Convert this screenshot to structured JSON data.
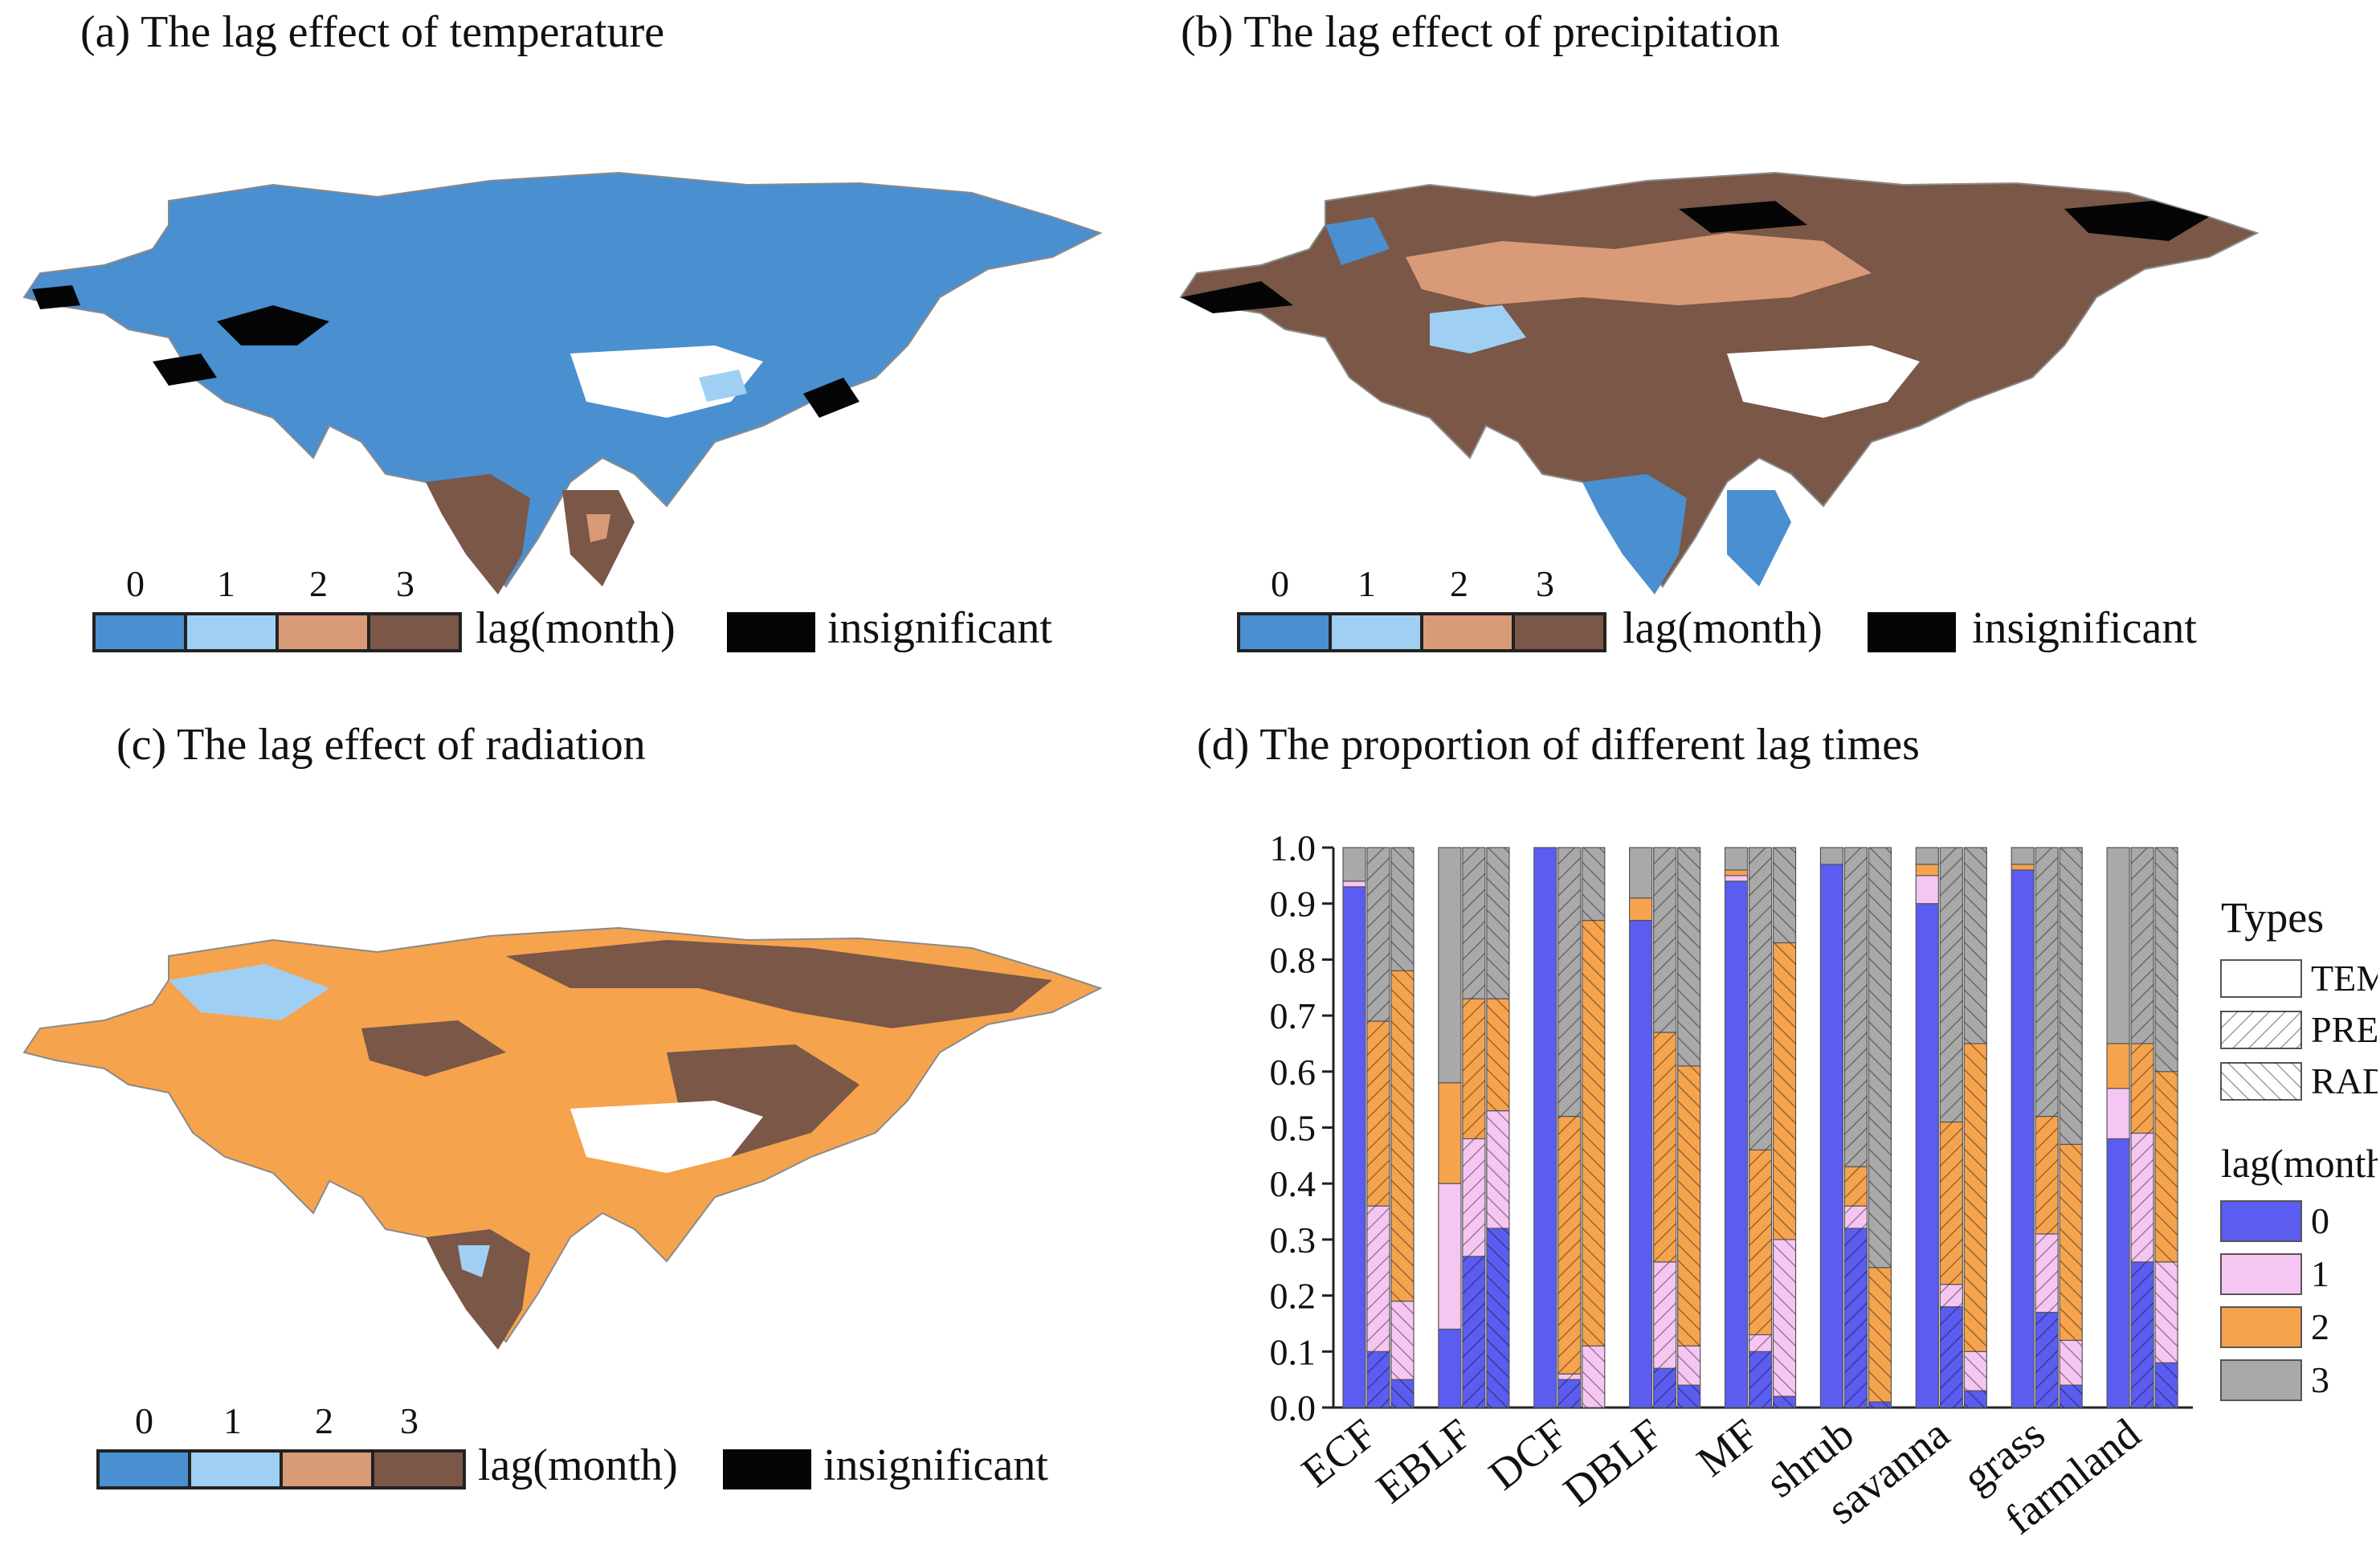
{
  "panels": {
    "a": {
      "title": "(a) The lag effect of temperature"
    },
    "b": {
      "title": "(b) The lag effect of precipitation"
    },
    "c": {
      "title": "(c) The lag effect of radiation"
    },
    "d": {
      "title": "(d) The proportion of different lag times"
    }
  },
  "map_legend": {
    "ticks": [
      "0",
      "1",
      "2",
      "3"
    ],
    "colors": [
      "#4a8fd0",
      "#9fd0f3",
      "#d89a77",
      "#7a5747"
    ],
    "label": "lag(month)",
    "insignificant_label": "insignificant",
    "insignificant_color": "#050505"
  },
  "chart_data": {
    "type": "bar",
    "stacked": true,
    "title": "(d) The proportion of different lag times",
    "categories": [
      "ECF",
      "EBLF",
      "DCF",
      "DBLF",
      "MF",
      "shrub",
      "savanna",
      "grass",
      "farmland"
    ],
    "types": [
      "TEM",
      "PRE",
      "RAD"
    ],
    "lag_classes": [
      "0",
      "1",
      "2",
      "3"
    ],
    "lag_colors": [
      "#5b5cf0",
      "#f6c6f2",
      "#f6a34e",
      "#a9a9a9"
    ],
    "series": [
      {
        "name": "0",
        "values": {
          "TEM": [
            0.93,
            0.14,
            1.0,
            0.87,
            0.94,
            0.97,
            0.9,
            0.96,
            0.48
          ],
          "PRE": [
            0.1,
            0.27,
            0.05,
            0.07,
            0.1,
            0.32,
            0.18,
            0.17,
            0.26
          ],
          "RAD": [
            0.05,
            0.32,
            0.0,
            0.04,
            0.02,
            0.01,
            0.03,
            0.04,
            0.08
          ]
        }
      },
      {
        "name": "1",
        "values": {
          "TEM": [
            0.01,
            0.26,
            0.0,
            0.0,
            0.01,
            0.0,
            0.05,
            0.0,
            0.09
          ],
          "PRE": [
            0.26,
            0.21,
            0.01,
            0.19,
            0.03,
            0.04,
            0.04,
            0.14,
            0.23
          ],
          "RAD": [
            0.14,
            0.21,
            0.11,
            0.07,
            0.28,
            0.0,
            0.07,
            0.08,
            0.18
          ]
        }
      },
      {
        "name": "2",
        "values": {
          "TEM": [
            0.0,
            0.18,
            0.0,
            0.04,
            0.01,
            0.0,
            0.02,
            0.01,
            0.08
          ],
          "PRE": [
            0.33,
            0.25,
            0.46,
            0.41,
            0.33,
            0.07,
            0.29,
            0.21,
            0.16
          ],
          "RAD": [
            0.59,
            0.2,
            0.76,
            0.5,
            0.53,
            0.24,
            0.55,
            0.35,
            0.34
          ]
        }
      },
      {
        "name": "3",
        "values": {
          "TEM": [
            0.06,
            0.42,
            0.0,
            0.09,
            0.04,
            0.03,
            0.03,
            0.03,
            0.35
          ],
          "PRE": [
            0.31,
            0.27,
            0.48,
            0.33,
            0.54,
            0.57,
            0.49,
            0.48,
            0.35
          ],
          "RAD": [
            0.22,
            0.27,
            0.13,
            0.39,
            0.17,
            0.75,
            0.35,
            0.53,
            0.4
          ]
        }
      }
    ],
    "ylim": [
      0.0,
      1.0
    ],
    "yticks": [
      "0.0",
      "0.1",
      "0.2",
      "0.3",
      "0.4",
      "0.5",
      "0.6",
      "0.7",
      "0.8",
      "0.9",
      "1.0"
    ],
    "legend": {
      "types_title": "Types",
      "lag_title": "lag(month)",
      "position": "right"
    }
  }
}
